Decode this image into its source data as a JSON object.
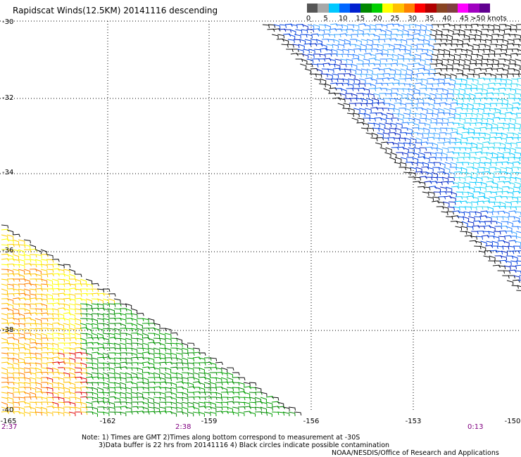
{
  "title": "Rapidscat Winds(12.5KM) 20141116 descending",
  "colorbar": {
    "colors": [
      "#555555",
      "#a8a8a8",
      "#00c8ff",
      "#0066ff",
      "#0020d0",
      "#008800",
      "#00d000",
      "#ffff00",
      "#ffc000",
      "#ff8000",
      "#ff0000",
      "#b00000",
      "#884422",
      "#804040",
      "#ff00ff",
      "#a000c0",
      "#600090"
    ],
    "labels": [
      "0",
      "5",
      "10",
      "15",
      "20",
      "25",
      "30",
      "35",
      "40",
      "45",
      ">50 knots"
    ]
  },
  "axes": {
    "y_labels": [
      "-30",
      "-32",
      "-34",
      "-36",
      "-38",
      "-40"
    ],
    "x_labels": [
      "-165",
      "-162",
      "-159",
      "-156",
      "-153",
      "-150"
    ]
  },
  "times": {
    "left": "2:37",
    "middle": "2:38",
    "right": "0:13"
  },
  "notes": {
    "line1": "Note: 1) Times are GMT 2)Times along bottom correspond to measurement at -30S",
    "line2": "3)Data buffer is 22 hrs from 20141116 4) Black circles indicate possible contamination"
  },
  "credit": "NOAA/NESDIS/Office of Research and Applications"
}
